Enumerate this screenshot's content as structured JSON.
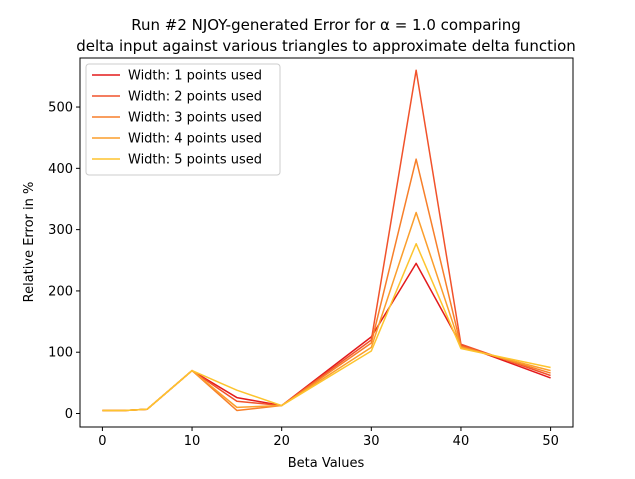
{
  "chart_data": {
    "type": "line",
    "title_line1": "Run #2 NJOY-generated Error for α = 1.0 comparing",
    "title_line2": "delta input against various triangles to approximate delta function",
    "xlabel": "Beta Values",
    "ylabel": "Relative Error in %",
    "xlim": [
      -2.5,
      52.5
    ],
    "ylim": [
      -22,
      580
    ],
    "xticks": [
      0,
      10,
      20,
      30,
      40,
      50
    ],
    "yticks": [
      0,
      100,
      200,
      300,
      400,
      500
    ],
    "x": [
      0,
      2.5,
      5,
      10,
      15,
      20,
      30,
      35,
      40,
      50
    ],
    "legend_position": "upper-left",
    "grid": false,
    "series": [
      {
        "name": "Width: 1 points used",
        "color": "#e31a1c",
        "values": [
          5,
          5,
          7,
          70,
          26,
          13,
          125,
          245,
          112,
          58
        ]
      },
      {
        "name": "Width: 2 points used",
        "color": "#f1522b",
        "values": [
          5,
          5,
          7,
          70,
          20,
          13,
          120,
          560,
          113,
          62
        ]
      },
      {
        "name": "Width: 3 points used",
        "color": "#f77f2a",
        "values": [
          5,
          5,
          7,
          70,
          5,
          13,
          115,
          415,
          110,
          66
        ]
      },
      {
        "name": "Width: 4 points used",
        "color": "#fb9e2c",
        "values": [
          5,
          5,
          7,
          70,
          10,
          13,
          108,
          328,
          108,
          70
        ]
      },
      {
        "name": "Width: 5 points used",
        "color": "#fdc42e",
        "values": [
          5,
          5,
          7,
          70,
          38,
          13,
          102,
          277,
          106,
          75
        ]
      }
    ]
  }
}
